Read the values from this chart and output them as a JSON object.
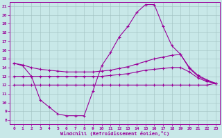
{
  "x_hours": [
    0,
    1,
    2,
    3,
    4,
    5,
    6,
    7,
    8,
    9,
    10,
    11,
    12,
    13,
    14,
    15,
    16,
    17,
    18,
    19,
    20,
    21,
    22,
    23
  ],
  "temp_line": [
    14.5,
    14.2,
    13.0,
    10.3,
    9.5,
    8.7,
    8.5,
    8.5,
    8.5,
    11.3,
    14.2,
    15.7,
    17.5,
    18.7,
    20.3,
    21.2,
    21.2,
    18.7,
    16.5,
    15.5,
    13.9,
    13.0,
    12.5,
    12.2
  ],
  "upper_flat": [
    14.5,
    14.3,
    14.0,
    13.8,
    13.7,
    13.6,
    13.5,
    13.5,
    13.5,
    13.5,
    13.6,
    13.7,
    13.9,
    14.1,
    14.4,
    14.7,
    15.0,
    15.2,
    15.4,
    15.5,
    14.0,
    13.1,
    12.6,
    12.2
  ],
  "mid_flat": [
    13.0,
    13.0,
    13.0,
    13.0,
    13.0,
    13.0,
    13.0,
    13.0,
    13.0,
    13.0,
    13.0,
    13.1,
    13.2,
    13.3,
    13.5,
    13.7,
    13.8,
    13.9,
    14.0,
    14.0,
    13.5,
    12.8,
    12.4,
    12.2
  ],
  "lower_flat": [
    12.0,
    12.0,
    12.0,
    12.0,
    12.0,
    12.0,
    12.0,
    12.0,
    12.0,
    12.0,
    12.0,
    12.0,
    12.0,
    12.0,
    12.0,
    12.0,
    12.0,
    12.0,
    12.0,
    12.0,
    12.0,
    12.0,
    12.0,
    12.2
  ],
  "line_color": "#990099",
  "bg_color": "#c8e8e8",
  "grid_color": "#a0c0c0",
  "xlabel": "Windchill (Refroidissement éolien,°C)",
  "ylim": [
    7.5,
    21.5
  ],
  "xlim": [
    -0.5,
    23.5
  ],
  "yticks": [
    8,
    9,
    10,
    11,
    12,
    13,
    14,
    15,
    16,
    17,
    18,
    19,
    20,
    21
  ],
  "xticks": [
    0,
    1,
    2,
    3,
    4,
    5,
    6,
    7,
    8,
    9,
    10,
    11,
    12,
    13,
    14,
    15,
    16,
    17,
    18,
    19,
    20,
    21,
    22,
    23
  ]
}
